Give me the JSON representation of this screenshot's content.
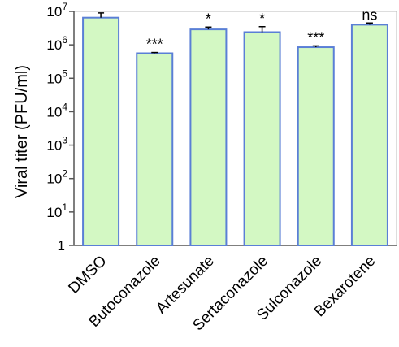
{
  "chart_data": {
    "type": "bar",
    "title": "",
    "xlabel": "",
    "ylabel": "Viral titer (PFU/ml)",
    "yscale": "log",
    "ylim": [
      1,
      10000000
    ],
    "yticks": [
      {
        "value": 1,
        "base": "1",
        "exp": ""
      },
      {
        "value": 10,
        "base": "10",
        "exp": "1"
      },
      {
        "value": 100,
        "base": "10",
        "exp": "2"
      },
      {
        "value": 1000,
        "base": "10",
        "exp": "3"
      },
      {
        "value": 10000,
        "base": "10",
        "exp": "4"
      },
      {
        "value": 100000,
        "base": "10",
        "exp": "5"
      },
      {
        "value": 1000000,
        "base": "10",
        "exp": "6"
      },
      {
        "value": 10000000,
        "base": "10",
        "exp": "7"
      }
    ],
    "categories": [
      "DMSO",
      "Butoconazole",
      "Artesunate",
      "Sertaconazole",
      "Sulconazole",
      "Bexarotene"
    ],
    "values": [
      6500000,
      560000,
      2900000,
      2400000,
      850000,
      4000000
    ],
    "error_upper": [
      9000000,
      590000,
      3400000,
      3500000,
      930000,
      4500000
    ],
    "significance": [
      "",
      "***",
      "*",
      "*",
      "***",
      "ns"
    ],
    "grid": false,
    "legend": "none",
    "colors": {
      "bar_fill": "#d3f8c3",
      "bar_stroke": "#5a7fd6",
      "axis": "#555555",
      "error": "#000000"
    }
  }
}
